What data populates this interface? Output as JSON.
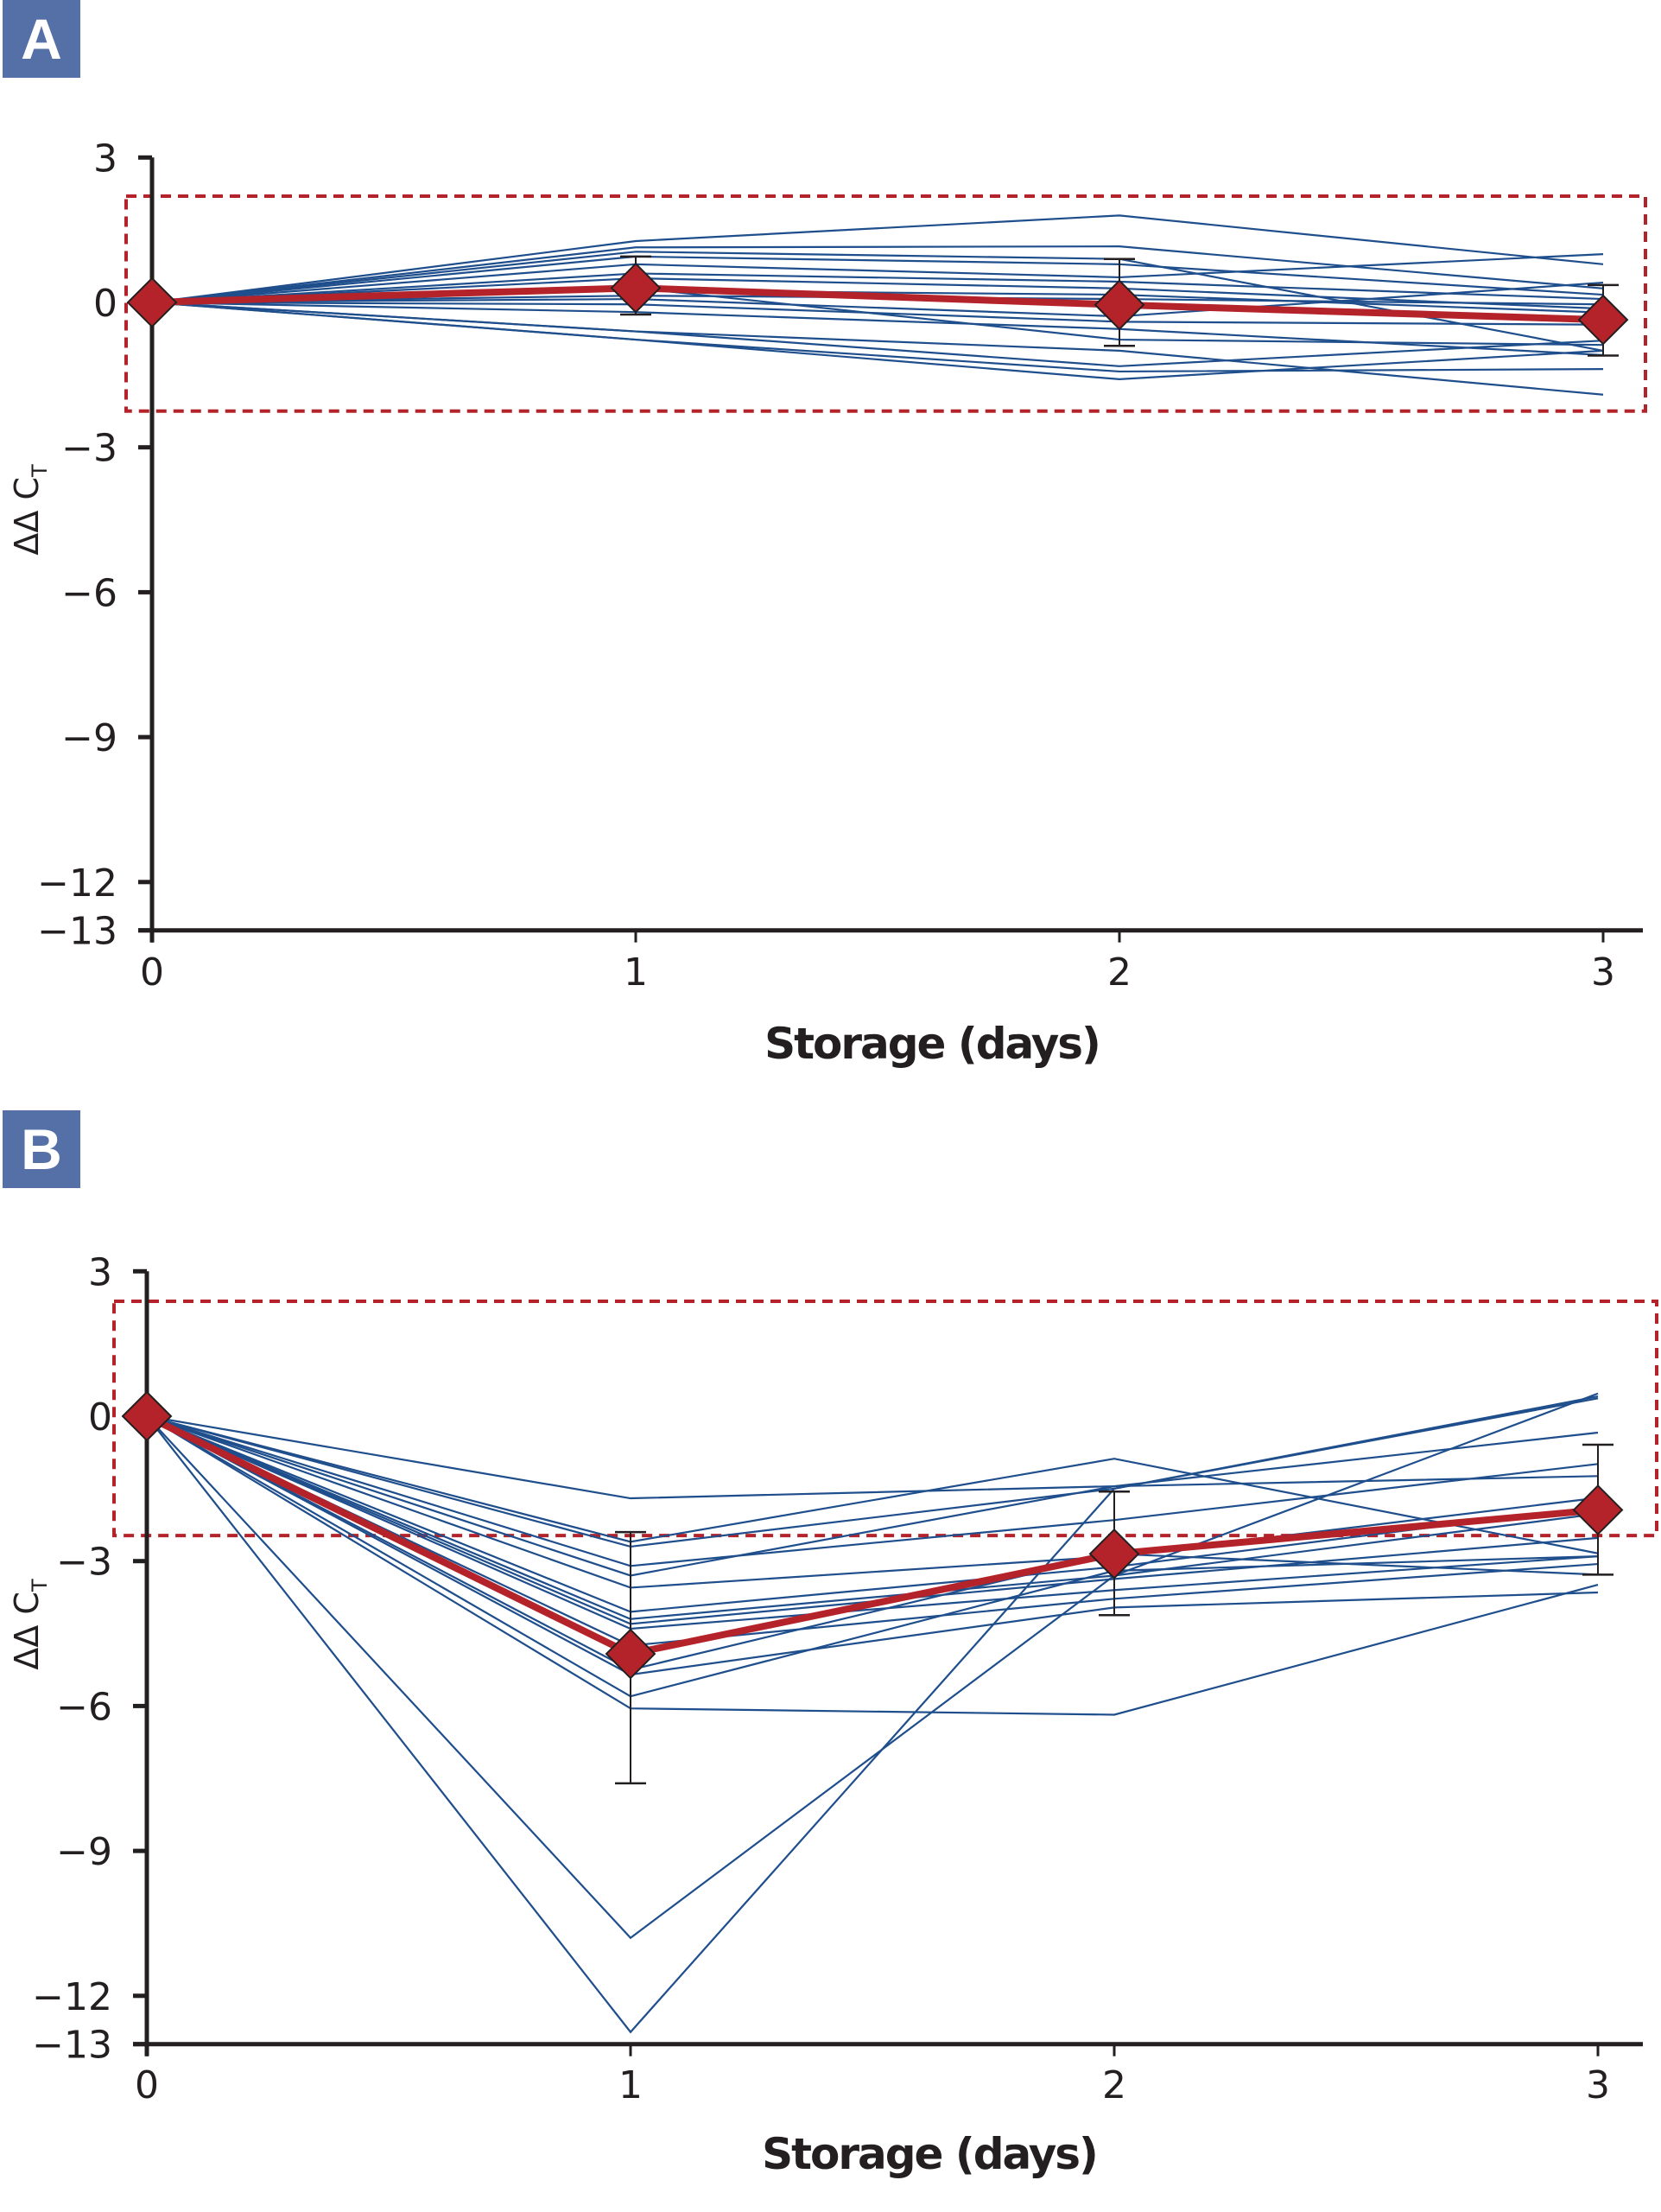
{
  "chart_data": [
    {
      "panel_label": "A",
      "type": "line",
      "title": "",
      "xlabel": "Storage (days)",
      "ylabel": "ΔΔ C",
      "ylabel_subscript": "T",
      "x": [
        0,
        1,
        2,
        3
      ],
      "x_tick_labels": [
        "0",
        "1",
        "2",
        "3"
      ],
      "ylim": [
        -13,
        3
      ],
      "y_ticks": [
        3,
        0,
        -3,
        -6,
        -9,
        -12,
        -13
      ],
      "y_tick_labels": [
        "3",
        "0",
        "−3",
        "−6",
        "−9",
        "−12",
        "−13"
      ],
      "threshold_box": {
        "y_min": -2.25,
        "y_max": 2.2,
        "style": "dashed"
      },
      "individual_series": [
        [
          0,
          1.27,
          1.8,
          0.79
        ],
        [
          0,
          1.14,
          1.16,
          0.29
        ],
        [
          0,
          1.05,
          0.9,
          -1.0
        ],
        [
          0,
          0.95,
          0.79,
          0.16
        ],
        [
          0,
          0.79,
          0.52,
          1.0
        ],
        [
          0,
          0.6,
          0.43,
          0.07
        ],
        [
          0,
          0.5,
          0.29,
          -0.13
        ],
        [
          0,
          0.25,
          0.16,
          -0.21
        ],
        [
          0,
          0.14,
          0.07,
          -0.04
        ],
        [
          0,
          0.07,
          -0.29,
          0.41
        ],
        [
          0,
          -0.04,
          -0.4,
          -0.46
        ],
        [
          0,
          -0.2,
          -0.55,
          -1.09
        ],
        [
          0,
          0.3,
          -0.77,
          -0.88
        ],
        [
          0,
          -0.6,
          -1.0,
          -1.91
        ],
        [
          0,
          -0.6,
          -1.32,
          -0.79
        ],
        [
          0,
          -0.77,
          -1.43,
          -1.38
        ],
        [
          0,
          -0.77,
          -1.59,
          -1.0
        ]
      ],
      "mean_series": {
        "name": "Mean",
        "values": [
          0,
          0.3,
          -0.05,
          -0.36
        ],
        "error_low": [
          0,
          -0.25,
          -0.9,
          -1.1
        ],
        "error_high": [
          0,
          0.95,
          0.9,
          0.36
        ]
      }
    },
    {
      "panel_label": "B",
      "type": "line",
      "title": "",
      "xlabel": "Storage (days)",
      "ylabel": "ΔΔ C",
      "ylabel_subscript": "T",
      "x": [
        0,
        1,
        2,
        3
      ],
      "x_tick_labels": [
        "0",
        "1",
        "2",
        "3"
      ],
      "ylim": [
        -13,
        3
      ],
      "y_ticks": [
        3,
        0,
        -3,
        -6,
        -9,
        -12,
        -13
      ],
      "y_tick_labels": [
        "3",
        "0",
        "−3",
        "−6",
        "−9",
        "−12",
        "−13"
      ],
      "threshold_box": {
        "y_min": -2.47,
        "y_max": 2.38,
        "style": "dashed"
      },
      "individual_series": [
        [
          0,
          -1.7,
          -1.45,
          -0.34
        ],
        [
          0,
          -2.6,
          -0.88,
          -2.84
        ],
        [
          0,
          -2.7,
          -1.5,
          0.41
        ],
        [
          0,
          -3.1,
          -2.15,
          -0.99
        ],
        [
          0,
          -3.3,
          -1.45,
          -1.24
        ],
        [
          0,
          -3.55,
          -2.9,
          -1.69
        ],
        [
          0,
          -4.05,
          -3.12,
          -1.87
        ],
        [
          0,
          -4.2,
          -3.3,
          -2.02
        ],
        [
          0,
          -4.3,
          -3.37,
          -2.52
        ],
        [
          0,
          -4.4,
          -3.6,
          -2.9
        ],
        [
          0,
          -4.75,
          -3.78,
          -3.06
        ],
        [
          0,
          -5.25,
          -2.85,
          -3.28
        ],
        [
          0,
          -5.35,
          -3.96,
          -3.65
        ],
        [
          0,
          -5.8,
          -3.2,
          -2.9
        ],
        [
          0,
          -6.05,
          -6.18,
          -3.49
        ],
        [
          0,
          -10.8,
          -3.3,
          0.47
        ],
        [
          0,
          -12.75,
          -1.5,
          0.37
        ]
      ],
      "mean_series": {
        "name": "Mean",
        "values": [
          0,
          -4.92,
          -2.85,
          -1.94
        ],
        "error_low": [
          0,
          -7.6,
          -4.12,
          -3.28
        ],
        "error_high": [
          0,
          -2.4,
          -1.56,
          -0.59
        ]
      }
    }
  ],
  "colors": {
    "individual_line": "#1f4e8c",
    "mean_line": "#b5232a",
    "threshold_box": "#b5232a",
    "axis": "#231f20",
    "panel_label_bg": "#5570a6"
  }
}
